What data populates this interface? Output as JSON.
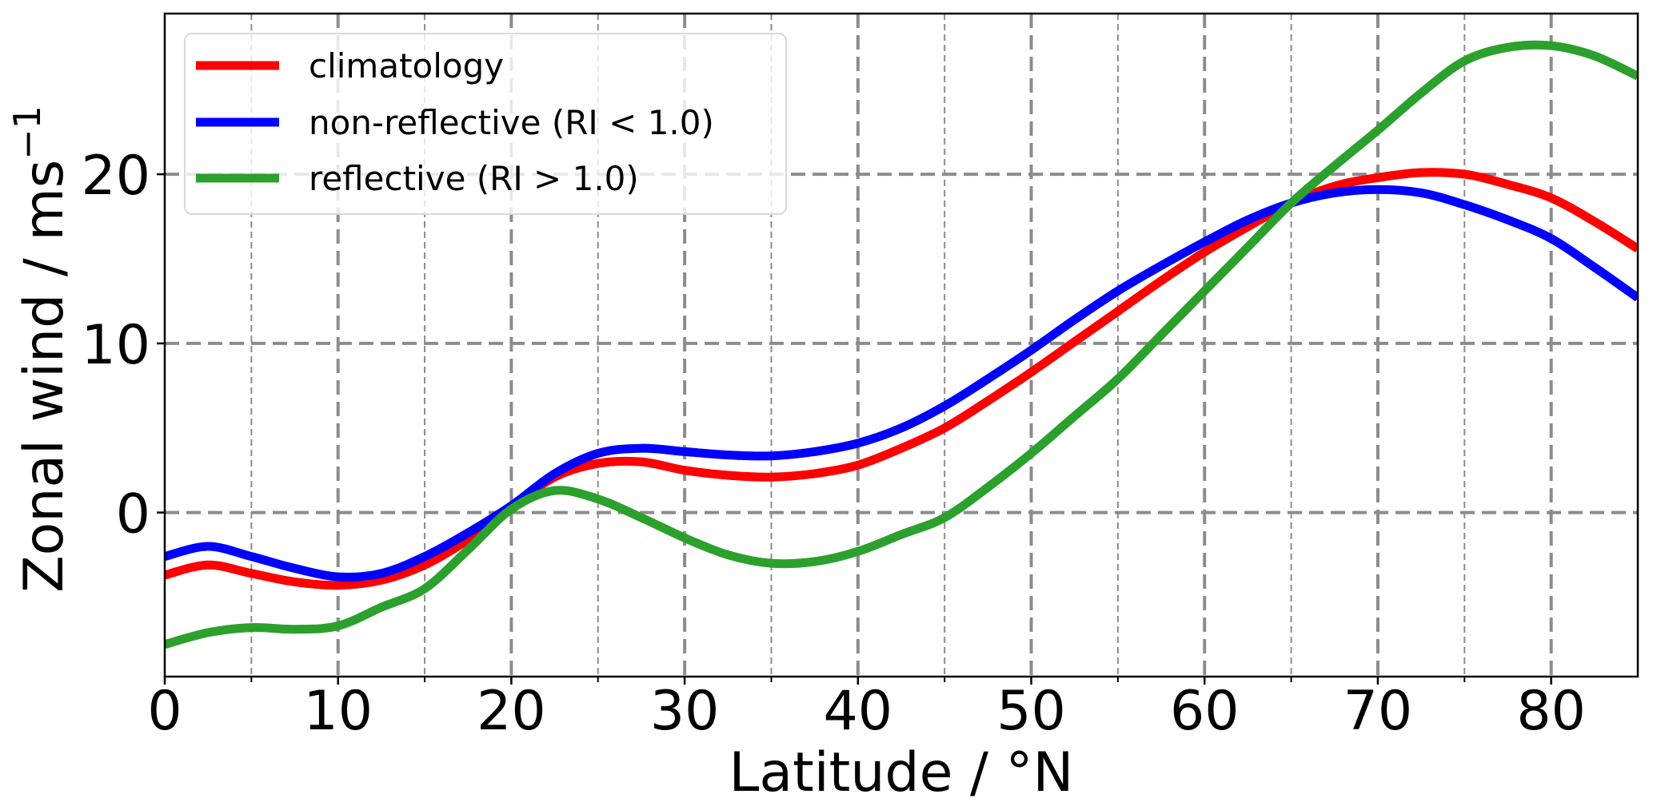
{
  "chart_data": {
    "type": "line",
    "title": "",
    "xlabel": "Latitude / °N",
    "ylabel": "Zonal wind / ms",
    "ylabel_superscript": "−1",
    "xlim": [
      0,
      85
    ],
    "ylim": [
      -9.7,
      29.5
    ],
    "xticks": [
      0,
      10,
      20,
      30,
      40,
      50,
      60,
      70,
      80
    ],
    "xtick_labels": [
      "0",
      "10",
      "20",
      "30",
      "40",
      "50",
      "60",
      "70",
      "80"
    ],
    "x_minor_gridlines": [
      5,
      15,
      25,
      35,
      45,
      55,
      65,
      75
    ],
    "yticks": [
      0,
      10,
      20
    ],
    "ytick_labels": [
      "0",
      "10",
      "20"
    ],
    "grid": true,
    "legend_position": "top-left",
    "x": [
      0,
      2.5,
      5,
      7.5,
      10,
      12.5,
      15,
      17.5,
      20,
      22.5,
      25,
      27.5,
      30,
      32.5,
      35,
      37.5,
      40,
      42.5,
      45,
      47.5,
      50,
      52.5,
      55,
      57.5,
      60,
      62.5,
      65,
      67.5,
      70,
      72.5,
      75,
      77.5,
      80,
      82.5,
      85
    ],
    "series": [
      {
        "name": "climatology",
        "color": "#ff0000",
        "values": [
          -3.7,
          -3.1,
          -3.6,
          -4.1,
          -4.3,
          -4.0,
          -3.1,
          -1.6,
          0.3,
          2.1,
          2.9,
          3.0,
          2.5,
          2.2,
          2.1,
          2.3,
          2.8,
          3.8,
          5.0,
          6.6,
          8.3,
          10.1,
          11.9,
          13.7,
          15.4,
          16.9,
          18.3,
          19.3,
          19.8,
          20.1,
          20.0,
          19.4,
          18.6,
          17.2,
          15.6
        ]
      },
      {
        "name": "non-reflective (RI < 1.0)",
        "color": "#0000ff",
        "values": [
          -2.6,
          -2.0,
          -2.6,
          -3.3,
          -3.8,
          -3.6,
          -2.6,
          -1.2,
          0.4,
          2.3,
          3.5,
          3.8,
          3.6,
          3.4,
          3.35,
          3.6,
          4.1,
          5.0,
          6.3,
          7.9,
          9.6,
          11.4,
          13.1,
          14.6,
          16.0,
          17.3,
          18.3,
          18.9,
          19.1,
          18.9,
          18.2,
          17.3,
          16.2,
          14.5,
          12.7
        ]
      },
      {
        "name": "reflective (RI > 1.0)",
        "color": "#2ca02c",
        "values": [
          -7.8,
          -7.1,
          -6.8,
          -6.9,
          -6.7,
          -5.6,
          -4.5,
          -2.2,
          0.2,
          1.3,
          0.8,
          -0.3,
          -1.5,
          -2.5,
          -3.0,
          -2.9,
          -2.3,
          -1.3,
          -0.3,
          1.5,
          3.5,
          5.7,
          7.9,
          10.5,
          13.1,
          15.7,
          18.3,
          20.5,
          22.6,
          24.8,
          26.7,
          27.5,
          27.6,
          27.0,
          25.8
        ]
      }
    ]
  }
}
